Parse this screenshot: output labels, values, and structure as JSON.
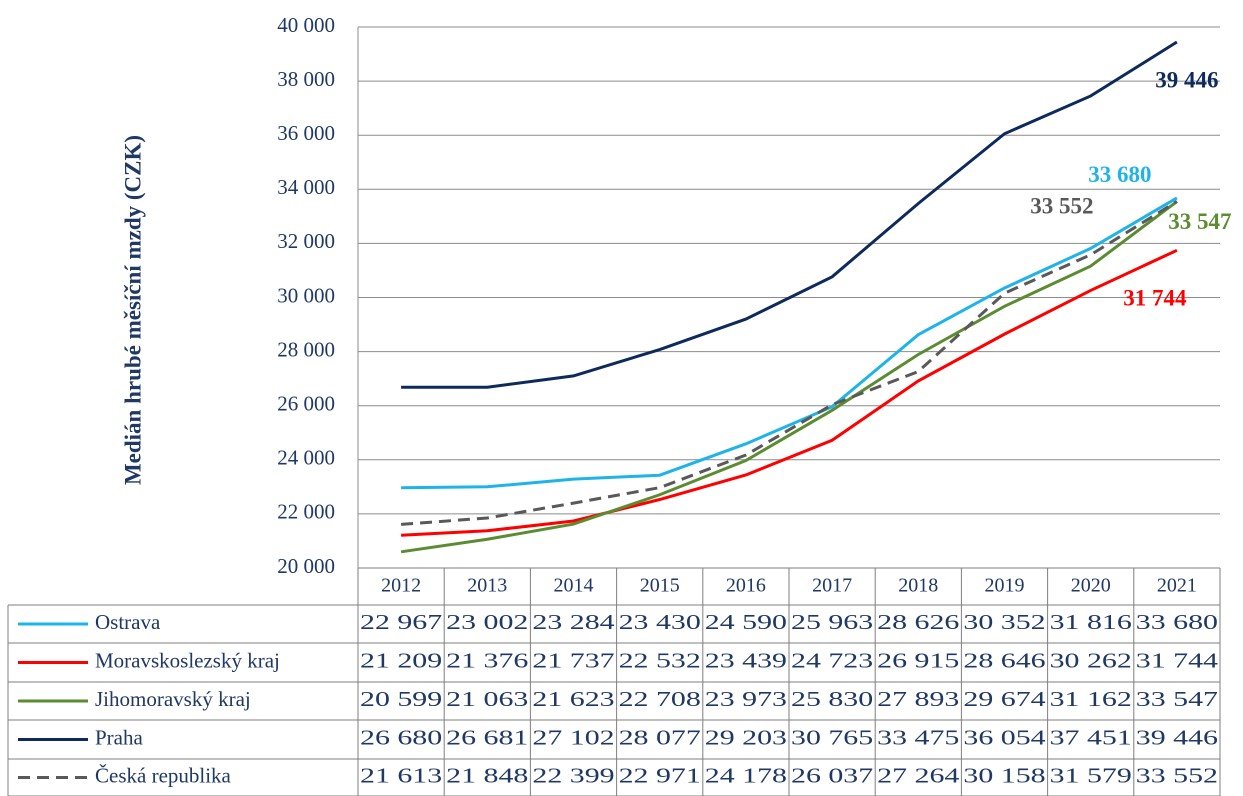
{
  "chart_data": {
    "type": "line",
    "y_label": "Medián hrubé měsíční mzdy (CZK)",
    "categories": [
      "2012",
      "2013",
      "2014",
      "2015",
      "2016",
      "2017",
      "2018",
      "2019",
      "2020",
      "2021"
    ],
    "ylim": [
      20000,
      40000
    ],
    "yticks": [
      {
        "value": 20000,
        "label": "20 000"
      },
      {
        "value": 22000,
        "label": "22 000"
      },
      {
        "value": 24000,
        "label": "24 000"
      },
      {
        "value": 26000,
        "label": "26 000"
      },
      {
        "value": 28000,
        "label": "28 000"
      },
      {
        "value": 30000,
        "label": "30 000"
      },
      {
        "value": 32000,
        "label": "32 000"
      },
      {
        "value": 34000,
        "label": "34 000"
      },
      {
        "value": 36000,
        "label": "36 000"
      },
      {
        "value": 38000,
        "label": "38 000"
      },
      {
        "value": 40000,
        "label": "40 000"
      }
    ],
    "grid": true,
    "series": [
      {
        "name": "Ostrava",
        "color": "#1eb4ea",
        "style": "solid",
        "values": [
          22967,
          23002,
          23284,
          23430,
          24590,
          25963,
          28626,
          30352,
          31816,
          33680
        ],
        "value_labels": [
          "22 967",
          "23 002",
          "23 284",
          "23 430",
          "24 590",
          "25 963",
          "28 626",
          "30 352",
          "31 816",
          "33 680"
        ]
      },
      {
        "name": "Moravskoslezský kraj",
        "color": "#ff0000",
        "style": "solid",
        "values": [
          21209,
          21376,
          21737,
          22532,
          23439,
          24723,
          26915,
          28646,
          30262,
          31744
        ],
        "value_labels": [
          "21 209",
          "21 376",
          "21 737",
          "22 532",
          "23 439",
          "24 723",
          "26 915",
          "28 646",
          "30 262",
          "31 744"
        ]
      },
      {
        "name": "Jihomoravský kraj",
        "color": "#5b8c32",
        "style": "solid",
        "values": [
          20599,
          21063,
          21623,
          22708,
          23973,
          25830,
          27893,
          29674,
          31162,
          33547
        ],
        "value_labels": [
          "20 599",
          "21 063",
          "21 623",
          "22 708",
          "23 973",
          "25 830",
          "27 893",
          "29 674",
          "31 162",
          "33 547"
        ]
      },
      {
        "name": "Praha",
        "color": "#0e2a5c",
        "style": "solid",
        "values": [
          26680,
          26681,
          27102,
          28077,
          29203,
          30765,
          33475,
          36054,
          37451,
          39446
        ],
        "value_labels": [
          "26 680",
          "26 681",
          "27 102",
          "28 077",
          "29 203",
          "30 765",
          "33 475",
          "36 054",
          "37 451",
          "39 446"
        ]
      },
      {
        "name": "Česká republika",
        "color": "#595959",
        "style": "dashed",
        "values": [
          21613,
          21848,
          22399,
          22971,
          24178,
          26037,
          27264,
          30158,
          31579,
          33552
        ],
        "value_labels": [
          "21 613",
          "21 848",
          "22 399",
          "22 971",
          "24 178",
          "26 037",
          "27 264",
          "30 158",
          "31 579",
          "33 552"
        ]
      }
    ]
  }
}
